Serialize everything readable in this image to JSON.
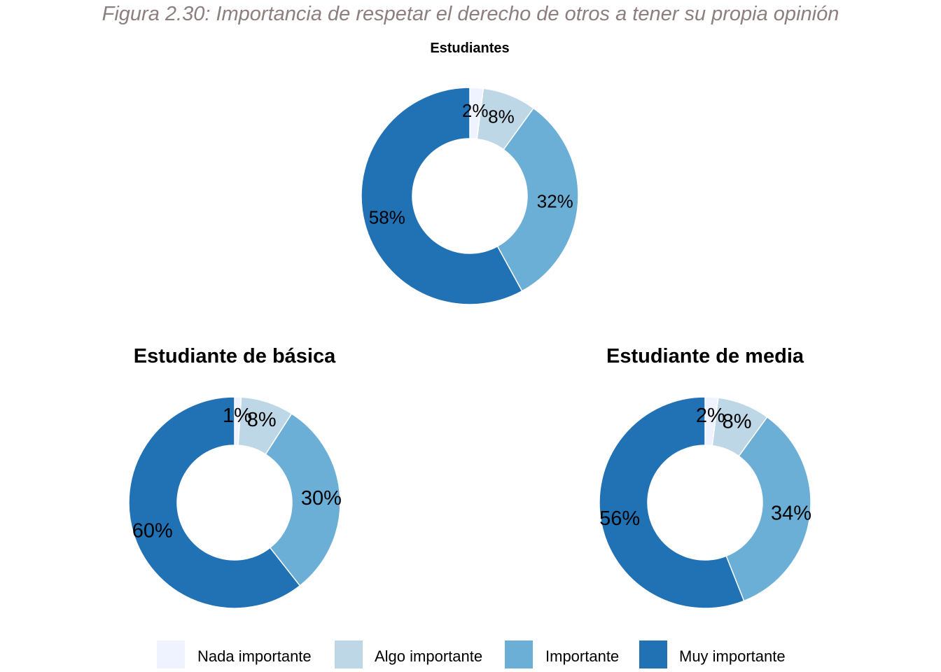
{
  "figure_title": "Figura 2.30: Importancia de respetar el derecho de otros a tener su propia opinión",
  "colors": {
    "Nada importante": "#eff3ff",
    "Algo importante": "#bdd7e7",
    "Importante": "#6baed6",
    "Muy importante": "#2171b5"
  },
  "chart_data": [
    {
      "type": "pie",
      "title": "Estudiantes",
      "categories": [
        "Nada importante",
        "Algo importante",
        "Importante",
        "Muy importante"
      ],
      "values": [
        2,
        8,
        32,
        58
      ],
      "labels": [
        "2%",
        "8%",
        "32%",
        "58%"
      ]
    },
    {
      "type": "pie",
      "title": "Estudiante de básica",
      "categories": [
        "Nada importante",
        "Algo importante",
        "Importante",
        "Muy importante"
      ],
      "values": [
        1,
        8,
        30,
        60
      ],
      "labels": [
        "1%",
        "8%",
        "30%",
        "60%"
      ]
    },
    {
      "type": "pie",
      "title": "Estudiante de media",
      "categories": [
        "Nada importante",
        "Algo importante",
        "Importante",
        "Muy importante"
      ],
      "values": [
        2,
        8,
        34,
        56
      ],
      "labels": [
        "2%",
        "8%",
        "34%",
        "56%"
      ]
    }
  ],
  "legend": {
    "items": [
      "Nada importante",
      "Algo importante",
      "Importante",
      "Muy importante"
    ]
  }
}
